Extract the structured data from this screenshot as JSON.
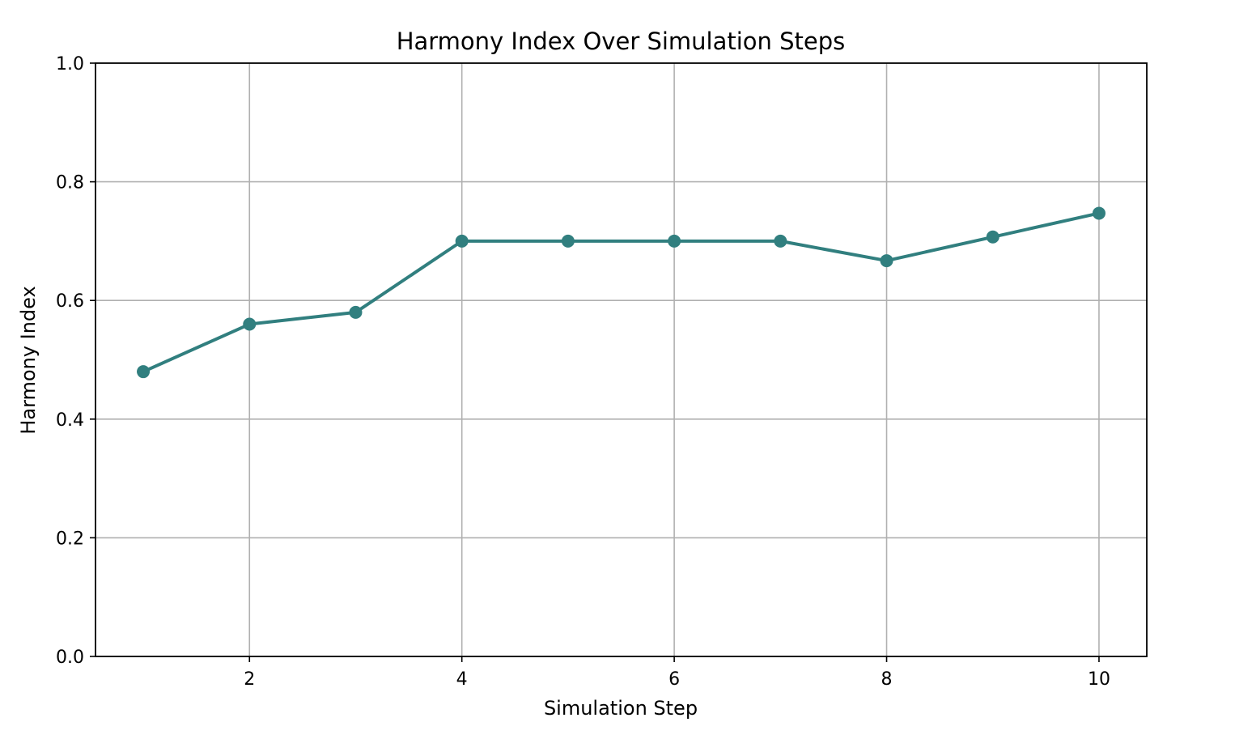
{
  "chart_data": {
    "type": "line",
    "title": "Harmony Index Over Simulation Steps",
    "xlabel": "Simulation Step",
    "ylabel": "Harmony Index",
    "xlim": [
      0.55,
      10.45
    ],
    "ylim": [
      0.0,
      1.0
    ],
    "xticks": [
      2,
      4,
      6,
      8,
      10
    ],
    "xtick_labels": [
      "2",
      "4",
      "6",
      "8",
      "10"
    ],
    "yticks": [
      0.0,
      0.2,
      0.4,
      0.6,
      0.8,
      1.0
    ],
    "ytick_labels": [
      "0.0",
      "0.2",
      "0.4",
      "0.6",
      "0.8",
      "1.0"
    ],
    "grid": true,
    "legend": "none",
    "color": "#317f7f",
    "series": [
      {
        "x": [
          1,
          2,
          3,
          4,
          5,
          6,
          7,
          8,
          9,
          10
        ],
        "values": [
          0.48,
          0.56,
          0.58,
          0.7,
          0.7,
          0.7,
          0.7,
          0.667,
          0.707,
          0.747
        ]
      }
    ]
  }
}
